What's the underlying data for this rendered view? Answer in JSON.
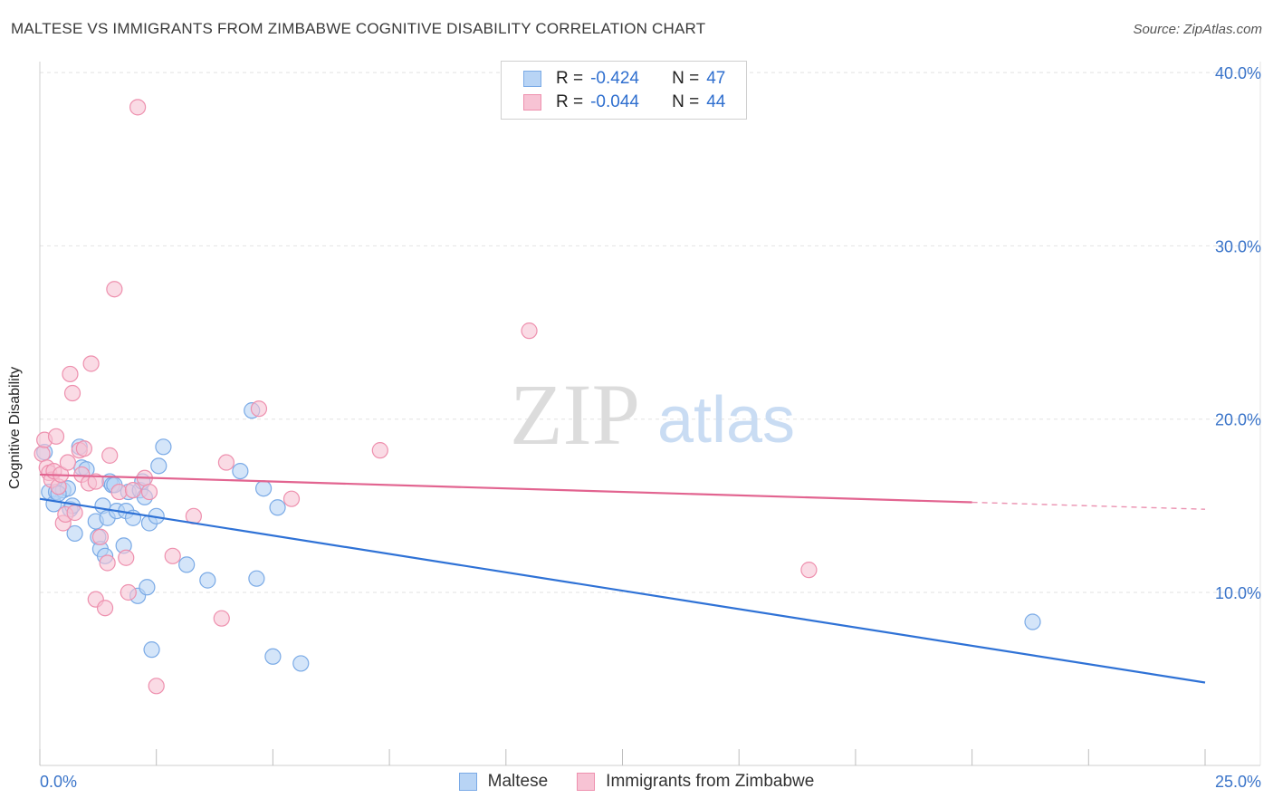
{
  "header": {
    "title": "MALTESE VS IMMIGRANTS FROM ZIMBABWE COGNITIVE DISABILITY CORRELATION CHART",
    "source": "Source: ZipAtlas.com"
  },
  "watermark": {
    "zip": "ZIP",
    "atlas": "atlas"
  },
  "legend": {
    "rows": [
      {
        "r_label": "R =",
        "r_value": "-0.424",
        "n_label": "N =",
        "n_value": "47"
      },
      {
        "r_label": "R =",
        "r_value": "-0.044",
        "n_label": "N =",
        "n_value": "44"
      }
    ]
  },
  "colors": {
    "maltese_fill": "#b8d4f5",
    "maltese_stroke": "#7aaae6",
    "maltese_line": "#2f72d6",
    "zimbabwe_fill": "#f7c3d4",
    "zimbabwe_stroke": "#ee90ae",
    "zimbabwe_line": "#e26490",
    "tick_label": "#3a74c9",
    "grid": "#e2e2e2"
  },
  "chart_data": {
    "type": "scatter",
    "title": "MALTESE VS IMMIGRANTS FROM ZIMBABWE COGNITIVE DISABILITY CORRELATION CHART",
    "xlabel": "",
    "ylabel": "Cognitive Disability",
    "xlim": [
      0,
      25
    ],
    "ylim": [
      0,
      40
    ],
    "x_ticks": [
      0,
      2.5,
      5,
      7.5,
      10,
      12.5,
      15,
      17.5,
      20,
      22.5,
      25
    ],
    "x_tick_labels": [
      {
        "value": 0,
        "label": "0.0%"
      },
      {
        "value": 25,
        "label": "25.0%"
      }
    ],
    "y_ticks": [
      {
        "value": 10,
        "label": "10.0%"
      },
      {
        "value": 20,
        "label": "20.0%"
      },
      {
        "value": 30,
        "label": "30.0%"
      },
      {
        "value": 40,
        "label": "40.0%"
      }
    ],
    "series": [
      {
        "name": "Maltese",
        "r": -0.424,
        "n": 47,
        "trend": {
          "x": [
            0,
            25
          ],
          "y": [
            15.4,
            4.8
          ],
          "dashed_from": null
        },
        "points": [
          [
            0.1,
            18.1
          ],
          [
            0.2,
            15.8
          ],
          [
            0.3,
            15.1
          ],
          [
            0.35,
            15.8
          ],
          [
            0.5,
            15.9
          ],
          [
            0.6,
            16.0
          ],
          [
            0.65,
            14.8
          ],
          [
            0.7,
            15.0
          ],
          [
            0.75,
            13.4
          ],
          [
            0.85,
            18.4
          ],
          [
            0.9,
            17.2
          ],
          [
            1.0,
            17.1
          ],
          [
            1.2,
            14.1
          ],
          [
            1.25,
            13.2
          ],
          [
            1.3,
            12.5
          ],
          [
            1.4,
            12.1
          ],
          [
            1.35,
            15.0
          ],
          [
            1.45,
            14.3
          ],
          [
            1.5,
            16.4
          ],
          [
            1.55,
            16.2
          ],
          [
            1.65,
            14.7
          ],
          [
            1.8,
            12.7
          ],
          [
            1.85,
            14.7
          ],
          [
            1.9,
            15.8
          ],
          [
            2.0,
            14.3
          ],
          [
            2.1,
            9.8
          ],
          [
            2.15,
            15.9
          ],
          [
            2.2,
            16.4
          ],
          [
            2.25,
            15.5
          ],
          [
            2.3,
            10.3
          ],
          [
            2.35,
            14.0
          ],
          [
            2.4,
            6.7
          ],
          [
            2.5,
            14.4
          ],
          [
            2.55,
            17.3
          ],
          [
            2.65,
            18.4
          ],
          [
            3.15,
            11.6
          ],
          [
            3.6,
            10.7
          ],
          [
            4.3,
            17.0
          ],
          [
            4.65,
            10.8
          ],
          [
            4.8,
            16.0
          ],
          [
            4.55,
            20.5
          ],
          [
            5.1,
            14.9
          ],
          [
            5.0,
            6.3
          ],
          [
            5.6,
            5.9
          ],
          [
            1.6,
            16.2
          ],
          [
            21.3,
            8.3
          ],
          [
            0.4,
            15.7
          ]
        ]
      },
      {
        "name": "Immigrants from Zimbabwe",
        "r": -0.044,
        "n": 44,
        "trend": {
          "x": [
            0,
            20,
            25
          ],
          "y": [
            16.8,
            15.2,
            14.8
          ],
          "dashed_from": 20
        },
        "points": [
          [
            0.05,
            18.0
          ],
          [
            0.1,
            18.8
          ],
          [
            0.15,
            17.2
          ],
          [
            0.2,
            16.9
          ],
          [
            0.25,
            16.5
          ],
          [
            0.3,
            17.0
          ],
          [
            0.35,
            19.0
          ],
          [
            0.4,
            16.1
          ],
          [
            0.45,
            16.8
          ],
          [
            0.5,
            14.0
          ],
          [
            0.55,
            14.5
          ],
          [
            0.6,
            17.5
          ],
          [
            0.65,
            22.6
          ],
          [
            0.7,
            21.5
          ],
          [
            0.75,
            14.6
          ],
          [
            0.85,
            18.2
          ],
          [
            0.9,
            16.8
          ],
          [
            0.95,
            18.3
          ],
          [
            1.05,
            16.3
          ],
          [
            1.1,
            23.2
          ],
          [
            1.2,
            9.6
          ],
          [
            1.3,
            13.2
          ],
          [
            1.4,
            9.1
          ],
          [
            1.45,
            11.7
          ],
          [
            1.5,
            17.9
          ],
          [
            1.6,
            27.5
          ],
          [
            1.7,
            15.8
          ],
          [
            1.85,
            12.0
          ],
          [
            1.9,
            10.0
          ],
          [
            2.0,
            15.9
          ],
          [
            2.1,
            38.0
          ],
          [
            2.25,
            16.6
          ],
          [
            2.35,
            15.8
          ],
          [
            2.5,
            4.6
          ],
          [
            2.85,
            12.1
          ],
          [
            3.3,
            14.4
          ],
          [
            3.9,
            8.5
          ],
          [
            4.0,
            17.5
          ],
          [
            4.7,
            20.6
          ],
          [
            5.4,
            15.4
          ],
          [
            7.3,
            18.2
          ],
          [
            10.5,
            25.1
          ],
          [
            16.5,
            11.3
          ],
          [
            1.2,
            16.4
          ]
        ]
      }
    ]
  },
  "bottom_legend": [
    {
      "label": "Maltese"
    },
    {
      "label": "Immigrants from Zimbabwe"
    }
  ]
}
